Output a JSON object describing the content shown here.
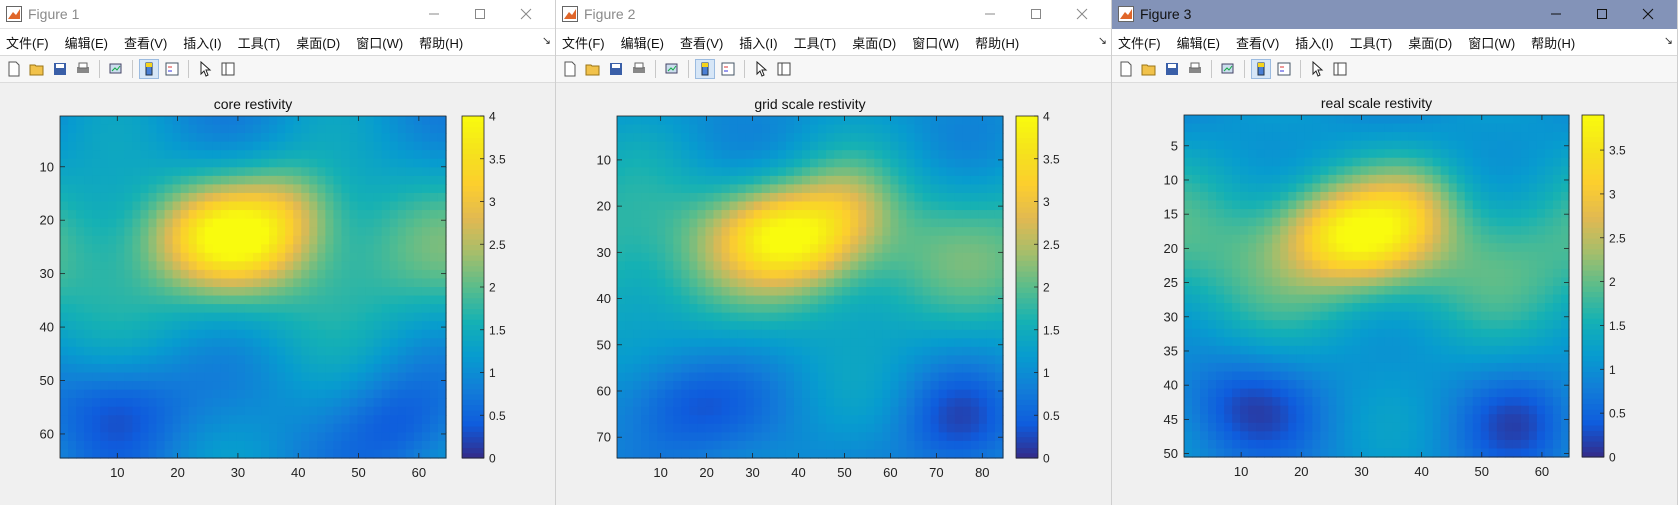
{
  "windows": [
    {
      "title": "Figure 1",
      "active": false,
      "left": 0,
      "width": 556,
      "menus": [
        "文件(F)",
        "编辑(E)",
        "查看(V)",
        "插入(I)",
        "工具(T)",
        "桌面(D)",
        "窗口(W)",
        "帮助(H)"
      ],
      "chart_data": {
        "type": "heatmap",
        "title": "core restivity",
        "x_ticks": [
          10,
          20,
          30,
          40,
          50,
          60
        ],
        "y_ticks": [
          10,
          20,
          30,
          40,
          50,
          60
        ],
        "xlim": [
          0.5,
          64.5
        ],
        "ylim": [
          0.5,
          64.5
        ],
        "colorbar_ticks": [
          "0",
          "0.5",
          "1",
          "1.5",
          "2",
          "2.5",
          "3",
          "3.5",
          "4"
        ],
        "clim": [
          0,
          4
        ],
        "colormap": "parula"
      }
    },
    {
      "title": "Figure 2",
      "active": false,
      "left": 556,
      "width": 556,
      "menus": [
        "文件(F)",
        "编辑(E)",
        "查看(V)",
        "插入(I)",
        "工具(T)",
        "桌面(D)",
        "窗口(W)",
        "帮助(H)"
      ],
      "chart_data": {
        "type": "heatmap",
        "title": "grid scale restivity",
        "x_ticks": [
          10,
          20,
          30,
          40,
          50,
          60,
          70,
          80
        ],
        "y_ticks": [
          10,
          20,
          30,
          40,
          50,
          60,
          70
        ],
        "xlim": [
          0.5,
          84.5
        ],
        "ylim": [
          0.5,
          74.5
        ],
        "colorbar_ticks": [
          "0",
          "0.5",
          "1",
          "1.5",
          "2",
          "2.5",
          "3",
          "3.5",
          "4"
        ],
        "clim": [
          0,
          4
        ],
        "colormap": "parula"
      }
    },
    {
      "title": "Figure 3",
      "active": true,
      "left": 1112,
      "width": 566,
      "menus": [
        "文件(F)",
        "编辑(E)",
        "查看(V)",
        "插入(I)",
        "工具(T)",
        "桌面(D)",
        "窗口(W)",
        "帮助(H)"
      ],
      "chart_data": {
        "type": "heatmap",
        "title": "real scale restivity",
        "x_ticks": [
          10,
          20,
          30,
          40,
          50,
          60
        ],
        "y_ticks": [
          5,
          10,
          15,
          20,
          25,
          30,
          35,
          40,
          45,
          50
        ],
        "xlim": [
          0.5,
          64.5
        ],
        "ylim": [
          0.5,
          50.5
        ],
        "colorbar_ticks": [
          "0",
          "0.5",
          "1",
          "1.5",
          "2",
          "2.5",
          "3",
          "3.5"
        ],
        "clim": [
          0,
          3.9
        ],
        "colormap": "parula"
      }
    }
  ]
}
